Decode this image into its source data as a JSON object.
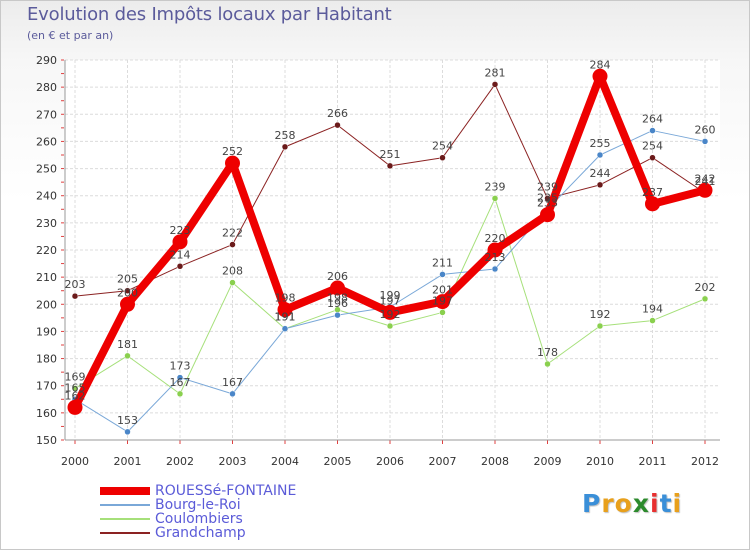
{
  "header": {
    "title": "Evolution des Impôts locaux par Habitant",
    "subtitle": "(en € et par an)"
  },
  "logo": {
    "text": "Proxiti",
    "letters": [
      "P",
      "r",
      "o",
      "x",
      "i",
      "t",
      "i"
    ],
    "colors": [
      "#3a8fd8",
      "#e8a01c",
      "#e8a01c",
      "#2c8a2c",
      "#e83030",
      "#3a8fd8",
      "#e8a01c"
    ]
  },
  "chart_data": {
    "type": "line",
    "title": "Evolution des Impôts locaux par Habitant",
    "subtitle": "(en € et par an)",
    "xlabel": "",
    "ylabel": "",
    "ylim": [
      150,
      290
    ],
    "yticks": [
      150,
      160,
      170,
      180,
      190,
      200,
      210,
      220,
      230,
      240,
      250,
      260,
      270,
      280,
      290
    ],
    "categories": [
      "2000",
      "2001",
      "2002",
      "2003",
      "2004",
      "2005",
      "2006",
      "2007",
      "2008",
      "2009",
      "2010",
      "2011",
      "2012"
    ],
    "grid": true,
    "series": [
      {
        "name": "Grandchamp",
        "color": "#8b2222",
        "dot": "#6b1a1a",
        "width": 1,
        "values": [
          203,
          205,
          214,
          222,
          258,
          266,
          251,
          254,
          281,
          239,
          244,
          254,
          241
        ],
        "labels": [
          "203",
          "205",
          "214",
          "222",
          "258",
          "266",
          "251",
          "254",
          "281",
          "239",
          "244",
          "254",
          "241"
        ]
      },
      {
        "name": "Coulombiers",
        "color": "#a6e07a",
        "dot": "#8ad04e",
        "width": 1,
        "values": [
          169,
          181,
          167,
          208,
          191,
          198,
          192,
          197,
          239,
          178,
          192,
          194,
          202
        ],
        "labels": [
          "169",
          "181",
          "167",
          "208",
          "191",
          "198",
          "192",
          "197",
          "239",
          "178",
          "192",
          "194",
          "202"
        ]
      },
      {
        "name": "Bourg-le-Roi",
        "color": "#7aa8d8",
        "dot": "#4a86c8",
        "width": 1,
        "values": [
          165,
          153,
          173,
          167,
          191,
          196,
          199,
          211,
          213,
          235,
          255,
          264,
          260
        ],
        "labels": [
          "165",
          "153",
          "173",
          "167",
          "191",
          "196",
          "199",
          "211",
          "213",
          "235",
          "255",
          "264",
          "260"
        ]
      },
      {
        "name": "ROUESSé-FONTAINE",
        "color": "#ee0000",
        "dot": "#ee0000",
        "width": 8,
        "values": [
          162,
          200,
          223,
          252,
          198,
          206,
          197,
          201,
          220,
          233,
          284,
          237,
          242
        ],
        "labels": [
          "162",
          "200",
          "223",
          "252",
          "198",
          "206",
          "197",
          "201",
          "220",
          "233",
          "284",
          "237",
          "242"
        ]
      }
    ],
    "legend": [
      {
        "name": "ROUESSé-FONTAINE",
        "color": "#ee0000"
      },
      {
        "name": "Bourg-le-Roi",
        "color": "#7aa8d8"
      },
      {
        "name": "Coulombiers",
        "color": "#a6e07a"
      },
      {
        "name": "Grandchamp",
        "color": "#8b2222"
      }
    ]
  }
}
